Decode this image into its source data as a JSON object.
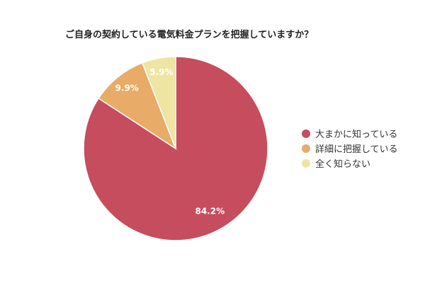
{
  "chart_data": {
    "type": "pie",
    "title": "ご自身の契約している電気料金プランを把握していますか？",
    "categories": [
      "大まかに知っている",
      "詳細に把握している",
      "全く知らない"
    ],
    "values": [
      84.2,
      9.9,
      5.9
    ],
    "labels": [
      "84.2%",
      "9.9%",
      "5.9%"
    ],
    "colors": [
      "#c54d5e",
      "#e8ab68",
      "#efe5a2"
    ],
    "legend_position": "right"
  }
}
